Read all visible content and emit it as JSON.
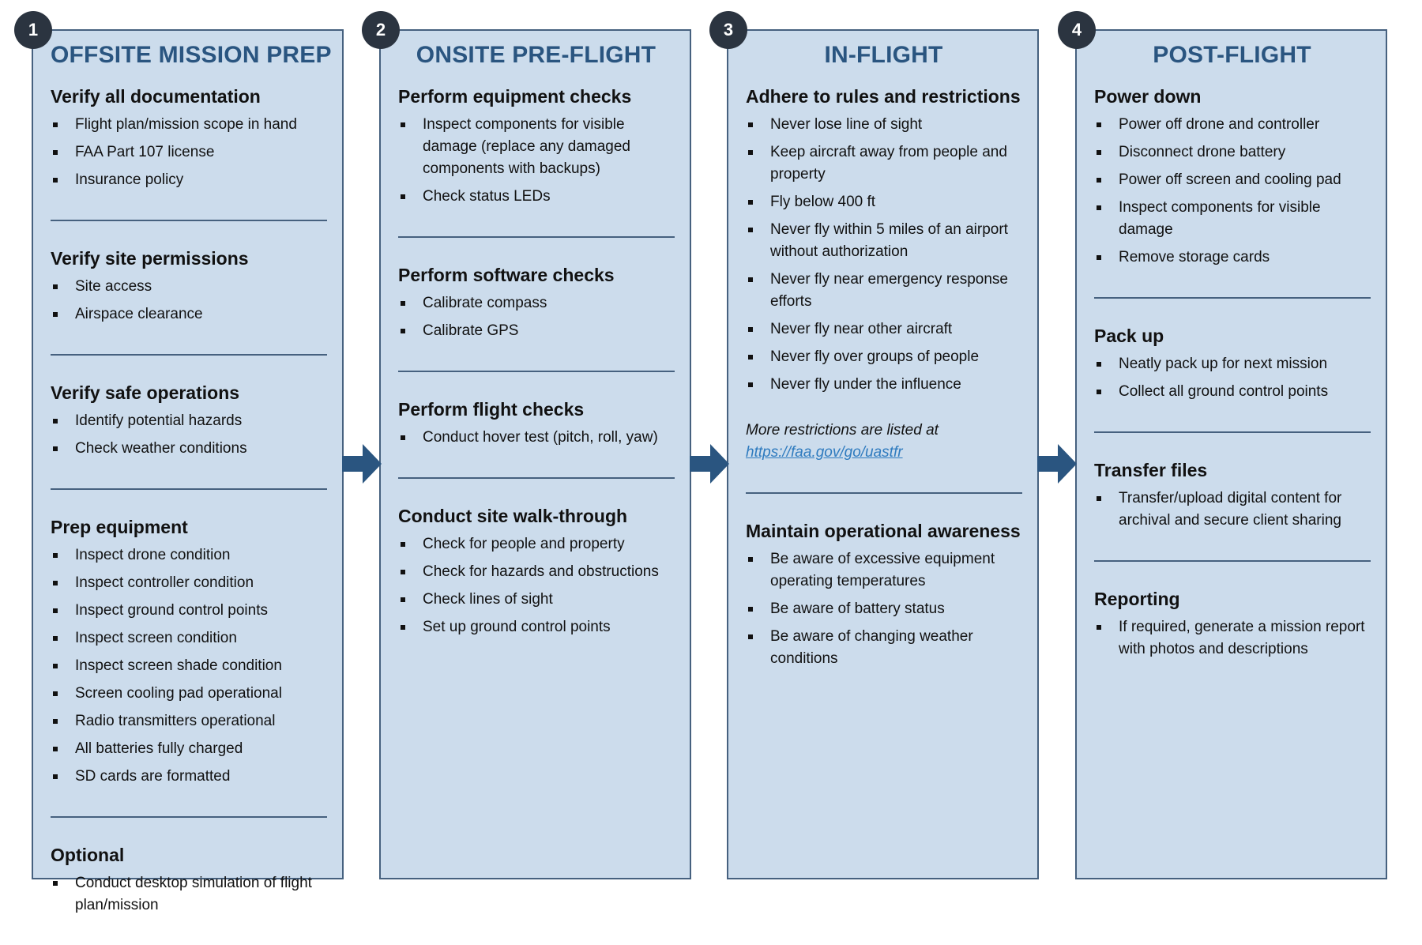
{
  "colors": {
    "panel_fill": "#ccdcec",
    "panel_border": "#46617f",
    "title": "#2a5580",
    "badge": "#2b3440",
    "arrow": "#2a5580",
    "link": "#2f7bbf"
  },
  "columns": [
    {
      "number": "1",
      "title": "OFFSITE MISSION PREP",
      "sections": [
        {
          "heading": "Verify all documentation",
          "items": [
            "Flight plan/mission scope in hand",
            "FAA Part 107 license",
            "Insurance policy"
          ]
        },
        {
          "heading": "Verify site permissions",
          "items": [
            "Site access",
            "Airspace clearance"
          ]
        },
        {
          "heading": "Verify safe operations",
          "items": [
            "Identify potential hazards",
            "Check weather conditions"
          ]
        },
        {
          "heading": "Prep equipment",
          "items": [
            "Inspect drone condition",
            "Inspect controller condition",
            "Inspect ground control points",
            "Inspect screen condition",
            "Inspect screen shade condition",
            "Screen cooling pad operational",
            "Radio transmitters operational",
            "All batteries fully charged",
            "SD cards are formatted"
          ]
        },
        {
          "heading": "Optional",
          "items": [
            "Conduct desktop simulation of flight plan/mission"
          ]
        }
      ]
    },
    {
      "number": "2",
      "title": "ONSITE PRE-FLIGHT",
      "sections": [
        {
          "heading": "Perform equipment checks",
          "items": [
            "Inspect components for visible damage (replace any damaged components with backups)",
            "Check status LEDs"
          ]
        },
        {
          "heading": "Perform software checks",
          "items": [
            "Calibrate compass",
            "Calibrate GPS"
          ]
        },
        {
          "heading": "Perform flight checks",
          "items": [
            "Conduct hover test (pitch, roll, yaw)"
          ]
        },
        {
          "heading": "Conduct site walk-through",
          "items": [
            "Check for people and property",
            "Check for hazards and obstructions",
            "Check lines of sight",
            "Set up ground control points"
          ]
        }
      ]
    },
    {
      "number": "3",
      "title": "IN-FLIGHT",
      "sections": [
        {
          "heading": "Adhere to rules and restrictions",
          "items": [
            "Never lose line of sight",
            "Keep aircraft away from people and property",
            "Fly below 400 ft",
            "Never fly within 5 miles of an airport without authorization",
            "Never fly near emergency response efforts",
            "Never fly near other aircraft",
            "Never fly over groups of people",
            "Never fly under the influence"
          ],
          "note": "More restrictions are listed at",
          "link": "https://faa.gov/go/uastfr"
        },
        {
          "heading": "Maintain operational awareness",
          "items": [
            "Be aware of excessive equipment operating temperatures",
            "Be aware of battery status",
            "Be aware of changing weather conditions"
          ]
        }
      ]
    },
    {
      "number": "4",
      "title": "POST-FLIGHT",
      "sections": [
        {
          "heading": "Power down",
          "items": [
            "Power off drone and controller",
            "Disconnect drone battery",
            "Power off screen and cooling pad",
            "Inspect components for visible damage",
            "Remove storage cards"
          ]
        },
        {
          "heading": "Pack up",
          "items": [
            "Neatly pack up for next mission",
            "Collect all ground control points"
          ]
        },
        {
          "heading": "Transfer files",
          "items": [
            "Transfer/upload digital content for archival and secure client sharing"
          ]
        },
        {
          "heading": "Reporting",
          "items": [
            "If required, generate a mission report with photos and descriptions"
          ]
        }
      ]
    }
  ]
}
